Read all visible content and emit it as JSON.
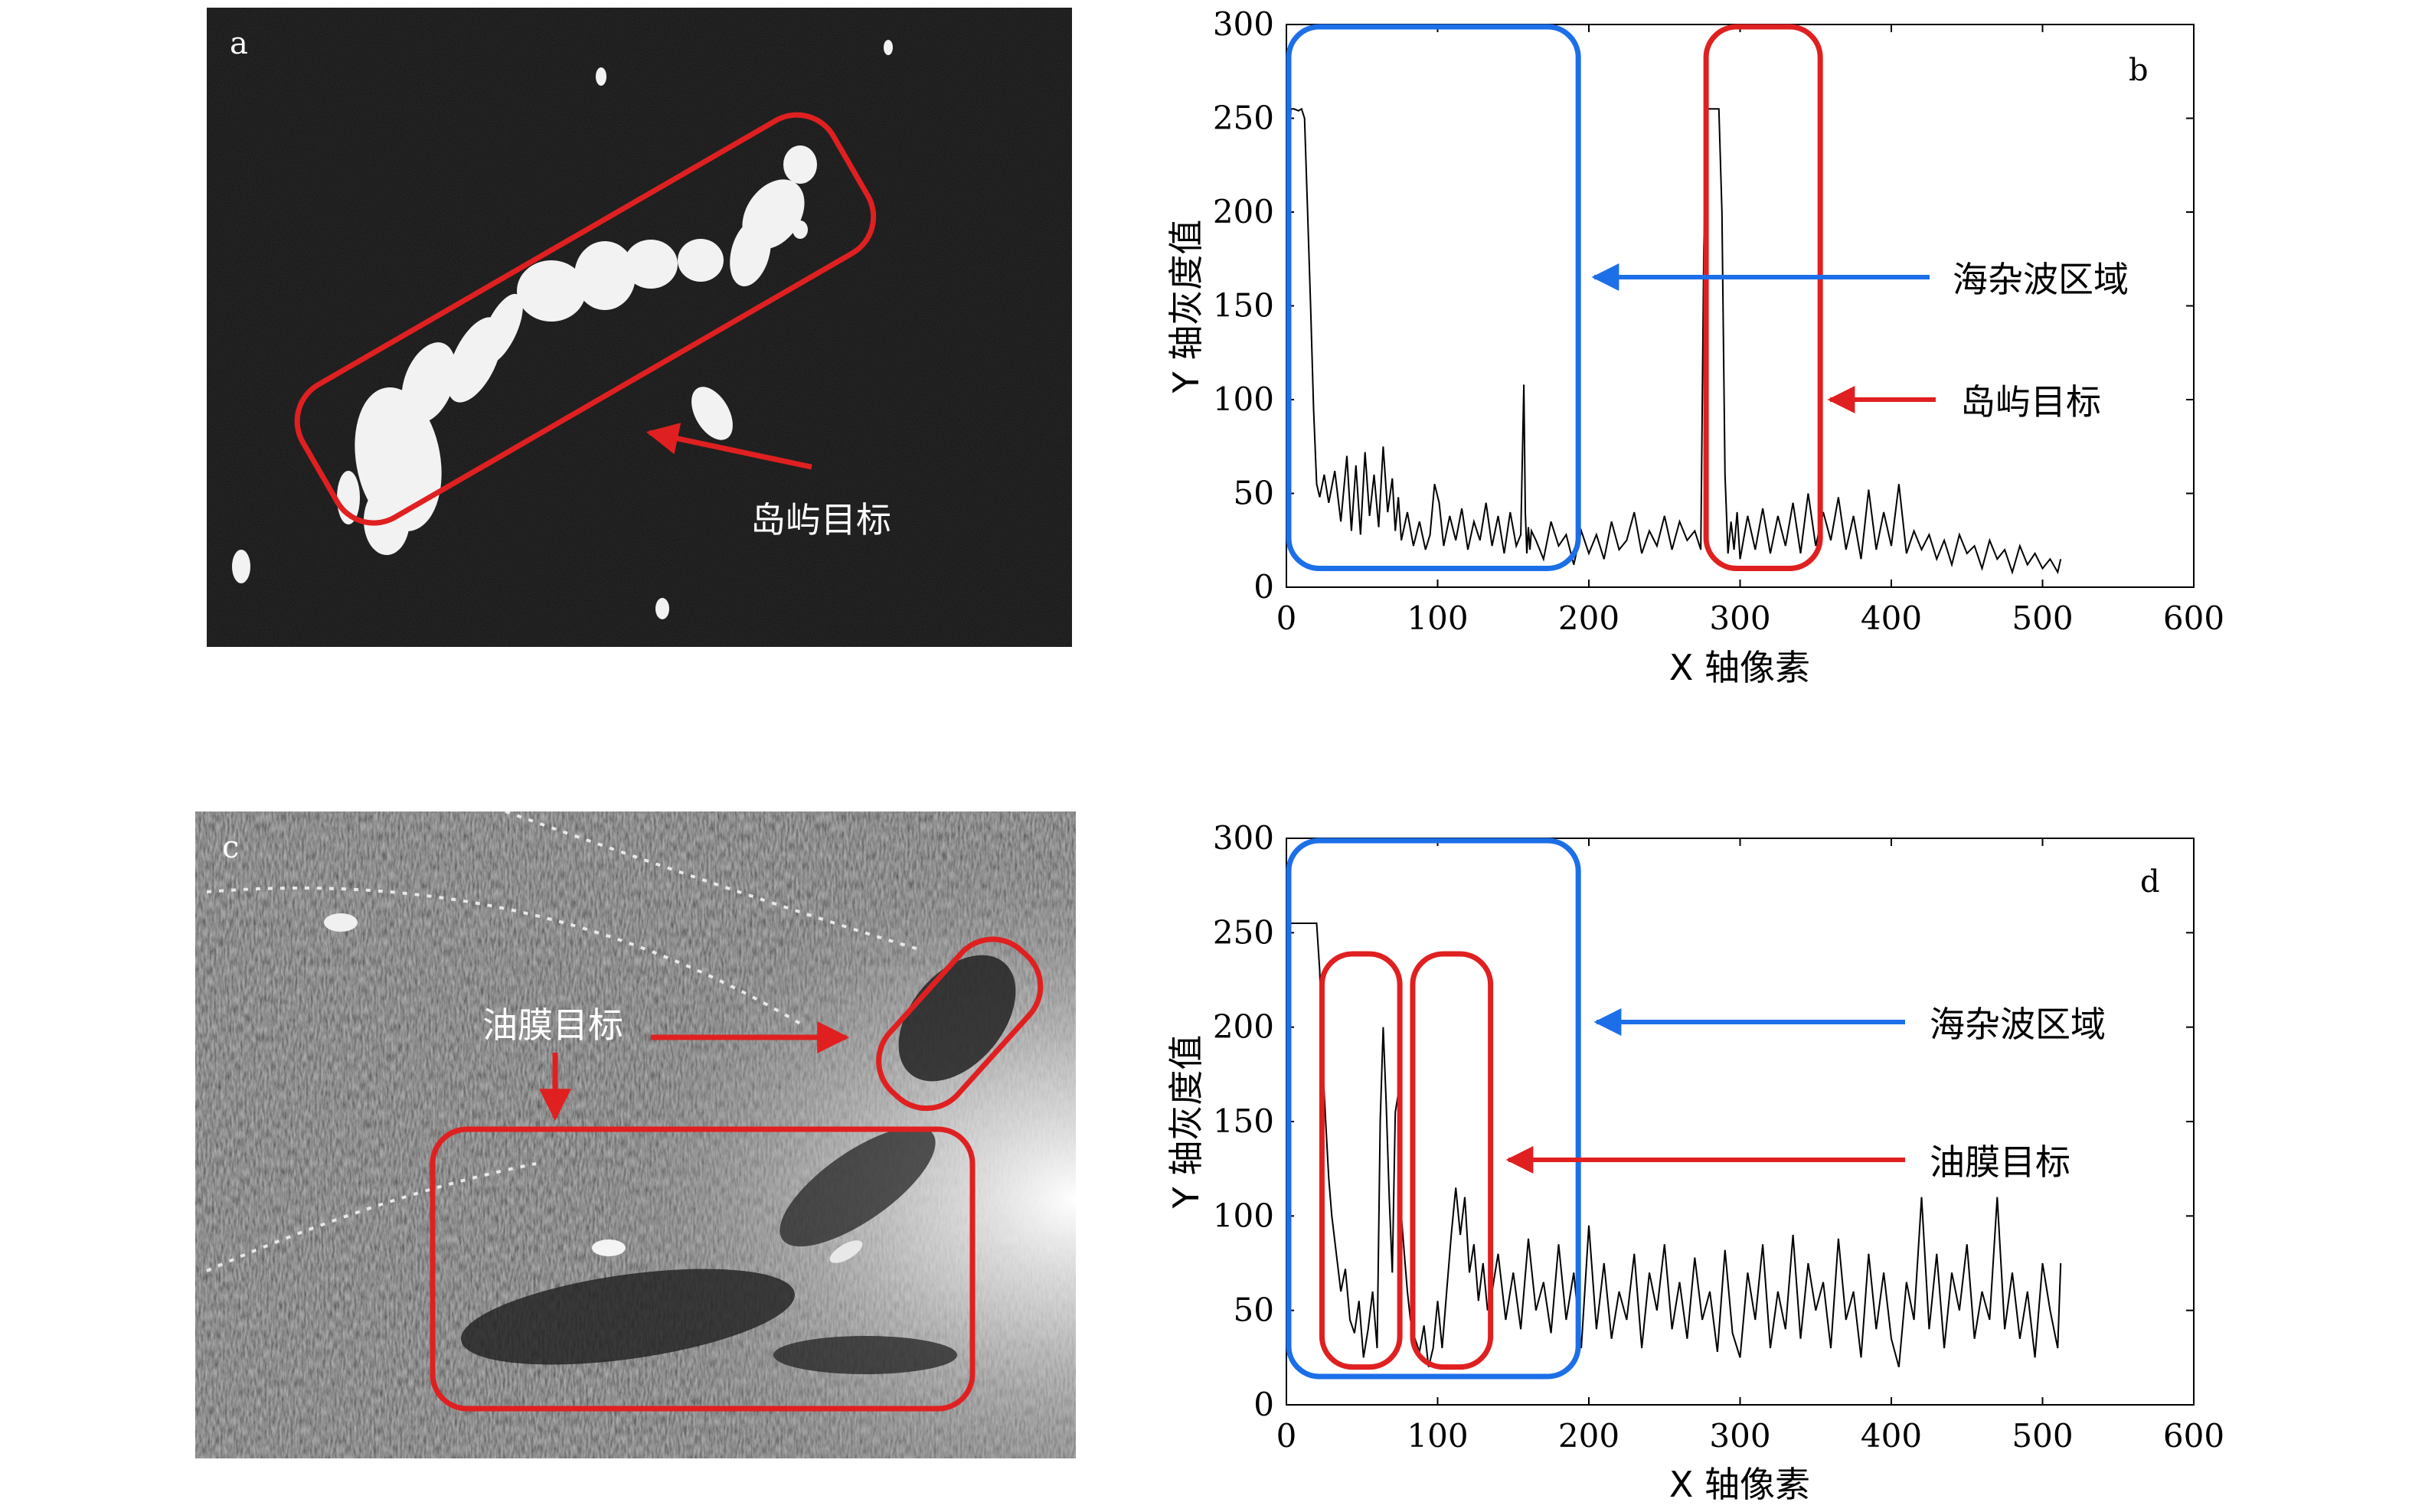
{
  "colors": {
    "red_box": "#e02020",
    "blue_box": "#1c6fe8",
    "sonar_dark_bg": "#0c0c0c",
    "sonar_c_bg": "#4a4a4a",
    "line": "#000000"
  },
  "panel_a": {
    "label": "a",
    "annotation": "岛屿目标"
  },
  "panel_c": {
    "label": "c",
    "annotation": "油膜目标"
  },
  "chart_data": [
    {
      "panel": "b",
      "type": "line",
      "xlabel": "X 轴像素",
      "ylabel": "Y 轴灰度值",
      "xlim": [
        0,
        600
      ],
      "ylim": [
        0,
        300
      ],
      "xticks": [
        "0",
        "100",
        "200",
        "300",
        "400",
        "500",
        "600"
      ],
      "yticks": [
        "0",
        "50",
        "100",
        "150",
        "200",
        "250",
        "300"
      ],
      "annotations": [
        "海杂波区域",
        "岛屿目标"
      ],
      "regions": [
        {
          "name": "海杂波区域",
          "color": "blue",
          "x_range": [
            0,
            193
          ],
          "y_range": [
            10,
            300
          ]
        },
        {
          "name": "岛屿目标",
          "color": "red",
          "x_range": [
            276,
            353
          ],
          "y_range": [
            10,
            300
          ]
        }
      ],
      "series": [
        {
          "x": [
            0,
            3,
            5,
            8,
            10,
            12,
            14,
            16,
            18,
            20,
            22,
            25,
            28,
            32,
            36,
            40,
            43,
            46,
            49,
            52,
            55,
            58,
            61,
            64,
            67,
            70,
            72,
            74,
            76,
            80,
            84,
            88,
            92,
            95,
            98,
            101,
            104,
            108,
            112,
            116,
            120,
            124,
            128,
            132,
            136,
            140,
            144,
            148,
            152,
            155,
            157,
            158,
            159,
            160,
            161,
            162,
            165,
            170,
            175,
            180,
            185,
            190,
            195,
            200,
            205,
            210,
            215,
            220,
            225,
            230,
            235,
            240,
            245,
            250,
            255,
            260,
            265,
            270,
            274,
            276,
            278,
            280,
            282,
            284,
            286,
            288,
            290,
            292,
            294,
            296,
            298,
            300,
            305,
            310,
            315,
            320,
            325,
            330,
            335,
            340,
            345,
            350,
            355,
            360,
            365,
            370,
            375,
            380,
            385,
            390,
            395,
            400,
            405,
            410,
            415,
            420,
            425,
            430,
            435,
            440,
            445,
            450,
            455,
            460,
            465,
            470,
            475,
            480,
            485,
            490,
            495,
            500,
            505,
            510,
            512
          ],
          "y": [
            195,
            255,
            255,
            254,
            255,
            250,
            200,
            150,
            95,
            55,
            48,
            60,
            45,
            62,
            35,
            70,
            30,
            65,
            28,
            72,
            38,
            60,
            32,
            75,
            40,
            58,
            30,
            48,
            25,
            40,
            22,
            35,
            20,
            28,
            55,
            45,
            22,
            38,
            25,
            42,
            20,
            35,
            25,
            45,
            22,
            38,
            18,
            40,
            22,
            28,
            108,
            40,
            18,
            32,
            20,
            30,
            25,
            15,
            35,
            22,
            28,
            12,
            30,
            18,
            28,
            15,
            35,
            20,
            25,
            40,
            18,
            30,
            22,
            38,
            20,
            35,
            25,
            30,
            20,
            180,
            255,
            255,
            255,
            255,
            255,
            200,
            60,
            18,
            35,
            20,
            40,
            15,
            38,
            20,
            42,
            18,
            38,
            22,
            45,
            18,
            50,
            22,
            40,
            25,
            48,
            20,
            38,
            15,
            52,
            20,
            40,
            22,
            55,
            18,
            30,
            20,
            28,
            15,
            25,
            12,
            28,
            18,
            22,
            10,
            25,
            15,
            20,
            8,
            22,
            12,
            18,
            10,
            15,
            8,
            15
          ]
        }
      ]
    },
    {
      "panel": "d",
      "type": "line",
      "xlabel": "X 轴像素",
      "ylabel": "Y 轴灰度值",
      "xlim": [
        0,
        600
      ],
      "ylim": [
        0,
        300
      ],
      "xticks": [
        "0",
        "100",
        "200",
        "300",
        "400",
        "500",
        "600"
      ],
      "yticks": [
        "0",
        "50",
        "100",
        "150",
        "200",
        "250",
        "300"
      ],
      "annotations": [
        "海杂波区域",
        "油膜目标"
      ],
      "regions": [
        {
          "name": "海杂波区域",
          "color": "blue",
          "x_range": [
            0,
            193
          ],
          "y_range": [
            15,
            300
          ]
        },
        {
          "name": "油膜目标",
          "color": "red",
          "x_range": [
            22,
            75
          ],
          "y_range": [
            20,
            240
          ]
        },
        {
          "name": "油膜目标",
          "color": "red",
          "x_range": [
            82,
            135
          ],
          "y_range": [
            20,
            240
          ]
        }
      ],
      "series": [
        {
          "x": [
            0,
            5,
            10,
            15,
            20,
            22,
            24,
            26,
            28,
            30,
            33,
            36,
            39,
            42,
            45,
            48,
            51,
            54,
            57,
            60,
            62,
            64,
            66,
            68,
            70,
            72,
            74,
            76,
            78,
            80,
            82,
            85,
            88,
            91,
            94,
            97,
            100,
            103,
            106,
            109,
            112,
            115,
            118,
            121,
            124,
            127,
            130,
            133,
            136,
            140,
            145,
            150,
            155,
            160,
            165,
            170,
            175,
            180,
            185,
            190,
            195,
            200,
            205,
            210,
            215,
            220,
            225,
            230,
            235,
            240,
            245,
            250,
            255,
            260,
            265,
            270,
            275,
            280,
            285,
            290,
            295,
            300,
            305,
            310,
            315,
            320,
            325,
            330,
            335,
            340,
            345,
            350,
            355,
            360,
            365,
            370,
            375,
            380,
            385,
            390,
            395,
            400,
            405,
            410,
            415,
            420,
            425,
            430,
            435,
            440,
            445,
            450,
            455,
            460,
            465,
            470,
            475,
            480,
            485,
            490,
            495,
            500,
            505,
            510,
            512
          ],
          "y": [
            255,
            255,
            255,
            255,
            255,
            230,
            180,
            150,
            120,
            100,
            80,
            60,
            72,
            45,
            38,
            55,
            25,
            40,
            60,
            30,
            150,
            200,
            160,
            110,
            70,
            155,
            165,
            100,
            80,
            60,
            45,
            35,
            28,
            42,
            20,
            30,
            55,
            30,
            60,
            90,
            115,
            90,
            110,
            70,
            85,
            55,
            75,
            50,
            60,
            80,
            45,
            70,
            40,
            88,
            50,
            65,
            38,
            85,
            45,
            70,
            30,
            95,
            40,
            75,
            35,
            60,
            45,
            80,
            30,
            70,
            50,
            85,
            40,
            65,
            35,
            78,
            45,
            60,
            28,
            82,
            38,
            25,
            70,
            45,
            85,
            30,
            60,
            40,
            90,
            35,
            75,
            50,
            65,
            30,
            88,
            45,
            60,
            25,
            80,
            40,
            70,
            35,
            20,
            65,
            45,
            110,
            40,
            80,
            30,
            70,
            50,
            85,
            35,
            60,
            45,
            110,
            40,
            70,
            35,
            60,
            25,
            75,
            50,
            30,
            75
          ]
        }
      ]
    }
  ]
}
